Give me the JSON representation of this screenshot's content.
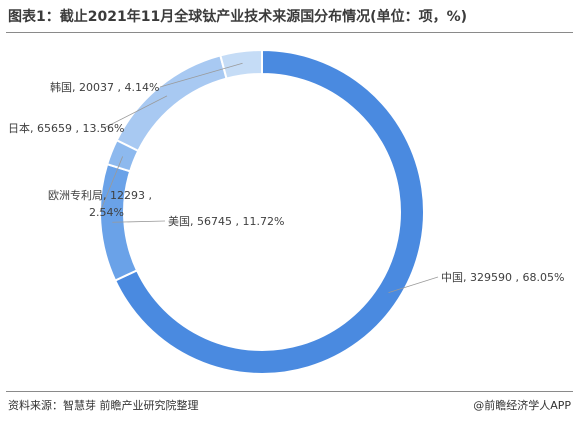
{
  "title": "图表1：截止2021年11月全球钛产业技术来源国分布情况(单位：项，%)",
  "source": "资料来源：智慧芽 前瞻产业研究院整理",
  "brand": "@前瞻经济学人APP",
  "chart_data": {
    "type": "pie",
    "donut": true,
    "slices": [
      {
        "name": "中国",
        "value": 329590,
        "percent": 68.05,
        "label": "中国, 329590 , 68.05%",
        "color": "#4a8ae0"
      },
      {
        "name": "美国",
        "value": 56745,
        "percent": 11.72,
        "label": "美国, 56745 , 11.72%",
        "color": "#6aa2e8"
      },
      {
        "name": "欧洲专利局",
        "value": 12293,
        "percent": 2.54,
        "label_lines": [
          "欧洲专利局, 12293 ,",
          "2.54%"
        ],
        "color": "#8db9ee"
      },
      {
        "name": "日本",
        "value": 65659,
        "percent": 13.56,
        "label": "日本, 65659 , 13.56%",
        "color": "#a8c9f2"
      },
      {
        "name": "韩国",
        "value": 20037,
        "percent": 4.14,
        "label": "韩国, 20037 , 4.14%",
        "color": "#c5dcf6"
      }
    ]
  }
}
